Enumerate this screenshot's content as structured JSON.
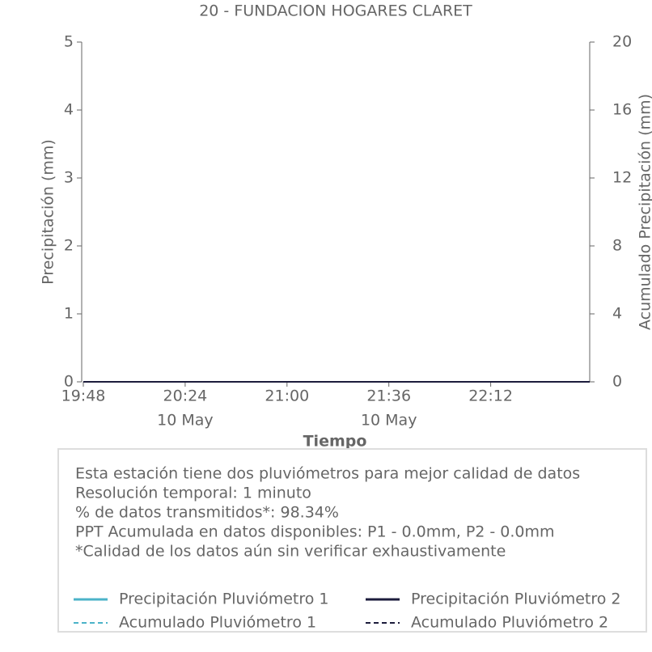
{
  "chart_data": {
    "type": "line",
    "title": "20 - FUNDACION HOGARES CLARET",
    "x_label": "Tiempo",
    "y_label": "Precipitación (mm)",
    "y2_label": "Acumulado Precipitación (mm)",
    "x": [
      "19:48",
      "20:00",
      "20:12",
      "20:24",
      "20:36",
      "20:48",
      "21:00",
      "21:12",
      "21:24",
      "21:36",
      "21:48",
      "22:00",
      "22:12",
      "22:24",
      "22:36",
      "22:47"
    ],
    "xlim": [
      "19:48",
      "22:47"
    ],
    "xticks": [
      {
        "value": "19:48",
        "label": [
          "19:48"
        ]
      },
      {
        "value": "20:24",
        "label": [
          "20:24",
          "10 May"
        ]
      },
      {
        "value": "21:00",
        "label": [
          "21:00"
        ]
      },
      {
        "value": "21:36",
        "label": [
          "21:36",
          "10 May"
        ]
      },
      {
        "value": "22:12",
        "label": [
          "22:12"
        ]
      }
    ],
    "ylim": [
      0,
      5
    ],
    "yticks": [
      0,
      1,
      2,
      3,
      4,
      5
    ],
    "y2lim": [
      0,
      20
    ],
    "y2ticks": [
      0,
      4,
      8,
      12,
      16,
      20
    ],
    "series": [
      {
        "name": "Precipitación Pluviómetro 1",
        "color": "#4bb3c8",
        "linestyle": "solid",
        "axis": "y",
        "values": [
          0,
          0,
          0,
          0,
          0,
          0,
          0,
          0,
          0,
          0,
          0,
          0,
          0,
          0,
          0,
          0
        ]
      },
      {
        "name": "Precipitación Pluviómetro 2",
        "color": "#1c1c3c",
        "linestyle": "solid",
        "axis": "y",
        "values": [
          0,
          0,
          0,
          0,
          0,
          0,
          0,
          0,
          0,
          0,
          0,
          0,
          0,
          0,
          0,
          0
        ]
      },
      {
        "name": "Acumulado Pluviómetro 1",
        "color": "#4bb3c8",
        "linestyle": "dashed",
        "axis": "y2",
        "values": [
          0,
          0,
          0,
          0,
          0,
          0,
          0,
          0,
          0,
          0,
          0,
          0,
          0,
          0,
          0,
          0
        ]
      },
      {
        "name": "Acumulado Pluviómetro 2",
        "color": "#1c1c3c",
        "linestyle": "dashed",
        "axis": "y2",
        "values": [
          0,
          0,
          0,
          0,
          0,
          0,
          0,
          0,
          0,
          0,
          0,
          0,
          0,
          0,
          0,
          0
        ]
      }
    ],
    "info": [
      "Esta estación tiene dos pluviómetros para mejor calidad de datos",
      "Resolución temporal: 1 minuto",
      "% de datos transmitidos*: 98.34%",
      "PPT Acumulada en datos disponibles: P1 - 0.0mm, P2 - 0.0mm",
      "*Calidad de los datos aún sin verificar exhaustivamente"
    ]
  }
}
